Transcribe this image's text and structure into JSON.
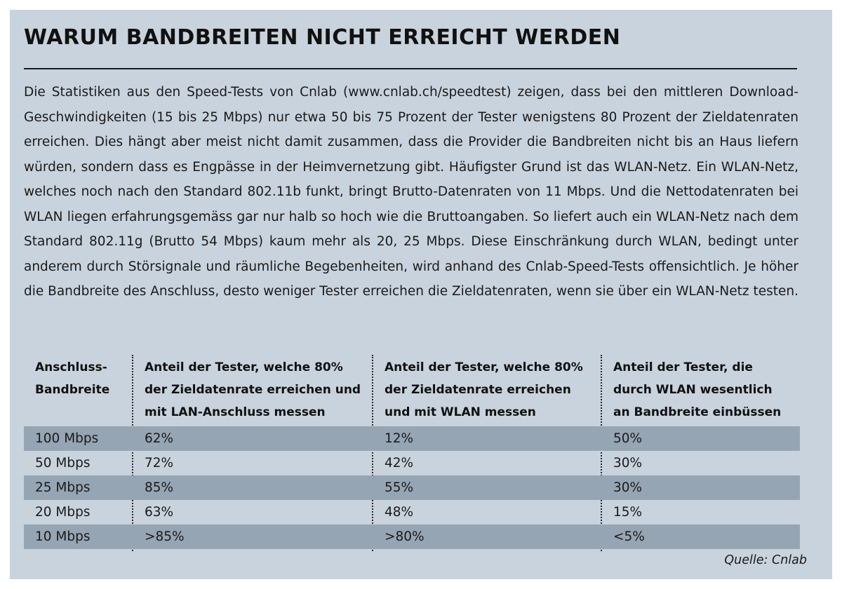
{
  "title": "WARUM BANDBREITEN NICHT ERREICHT WERDEN",
  "body_text": "Die Statistiken aus den Speed-Tests von Cnlab (www.cnlab.ch/speedtest) zeigen, dass bei den mittleren Download-Geschwindigkeiten (15 bis 25 Mbps) nur etwa 50 bis 75 Prozent der Tester wenigstens 80 Prozent der Zieldatenraten erreichen. Dies hängt aber meist nicht damit zusammen, dass die Provider die Bandbreiten nicht bis an Haus liefern würden, sondern dass es Engpässe in der Heimvernetzung gibt. Häufigster Grund ist das WLAN-Netz. Ein WLAN-Netz, welches noch nach den Standard 802.11b funkt, bringt Brutto-Datenraten von 11 Mbps. Und die Nettodatenraten bei WLAN liegen erfahrungsgemäss gar nur halb so hoch wie die Bruttoangaben. So liefert auch ein WLAN-Netz nach dem Standard 802.11g (Brutto 54 Mbps) kaum mehr als 20, 25 Mbps. Diese Einschränkung durch WLAN, bedingt unter anderem durch Störsignale und räumliche Begebenheiten, wird anhand des Cnlab-Speed-Tests offensichtlich. Je höher die Bandbreite des Anschluss, desto weniger Tester erreichen die Zieldatenraten, wenn sie über ein WLAN-Netz testen.",
  "table": {
    "headers": [
      [
        "Anschluss-",
        "Bandbreite"
      ],
      [
        "Anteil der Tester, welche 80%",
        "der Zieldatenrate erreichen und",
        "mit LAN-Anschluss messen"
      ],
      [
        "Anteil der Tester, welche 80%",
        "der Zieldatenrate erreichen",
        "und mit WLAN messen"
      ],
      [
        "Anteil der Tester, die",
        "durch WLAN wesentlich",
        "an Bandbreite einbüssen"
      ]
    ],
    "rows": [
      [
        "100 Mbps",
        "62%",
        "12%",
        "50%"
      ],
      [
        "50 Mbps",
        "72%",
        "42%",
        "30%"
      ],
      [
        "25 Mbps",
        "85%",
        "55%",
        "30%"
      ],
      [
        "20 Mbps",
        "63%",
        "48%",
        "15%"
      ],
      [
        "10 Mbps",
        ">85%",
        ">80%",
        "<5%"
      ]
    ]
  },
  "source": "Quelle: Cnlab",
  "colors": {
    "background": "#c9d3dd",
    "row_shade": "#96a5b4",
    "text": "#1a1a1a"
  }
}
